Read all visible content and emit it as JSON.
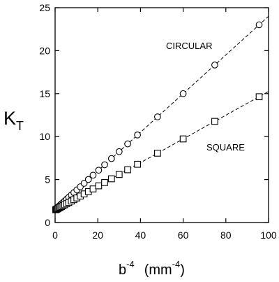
{
  "chart_data": {
    "type": "scatter",
    "title": "",
    "ylabel": "K",
    "ylabel_subscript": "T",
    "xlabel_base": "b",
    "xlabel_exponent": "-4",
    "xlabel_unit_open": "(mm",
    "xlabel_unit_exponent": "-4",
    "xlabel_unit_close": ")",
    "xlim": [
      0,
      100
    ],
    "ylim": [
      0,
      25
    ],
    "x_ticks": [
      0,
      20,
      40,
      60,
      80,
      100
    ],
    "y_ticks": [
      0,
      5,
      10,
      15,
      20,
      25
    ],
    "grid": false,
    "series": [
      {
        "name": "CIRCULAR",
        "marker": "circle",
        "fit": [
          1.5,
          0.225
        ],
        "x": [
          0.3,
          0.6,
          1.0,
          1.4,
          1.9,
          2.4,
          3.0,
          3.7,
          4.5,
          5.4,
          6.4,
          7.6,
          8.8,
          10.2,
          11.8,
          13.6,
          15.6,
          17.8,
          20.4,
          23.2,
          26.4,
          30.0,
          34.0,
          38.6,
          48.0,
          60.0,
          74.8,
          95.6
        ],
        "y": [
          1.57,
          1.64,
          1.73,
          1.82,
          1.93,
          2.04,
          2.18,
          2.33,
          2.51,
          2.72,
          2.94,
          3.21,
          3.48,
          3.8,
          4.16,
          4.56,
          5.01,
          5.51,
          6.09,
          6.72,
          7.44,
          8.25,
          9.15,
          10.19,
          12.3,
          15.0,
          18.33,
          23.01
        ]
      },
      {
        "name": "SQUARE",
        "marker": "square",
        "fit": [
          1.45,
          0.138
        ],
        "x": [
          0.3,
          0.6,
          1.0,
          1.4,
          1.9,
          2.4,
          3.0,
          3.7,
          4.5,
          5.4,
          6.4,
          7.6,
          8.8,
          10.2,
          11.8,
          13.6,
          15.6,
          17.8,
          20.4,
          23.2,
          26.4,
          30.0,
          34.0,
          38.6,
          48.0,
          60.0,
          74.8,
          95.6
        ],
        "y": [
          1.49,
          1.53,
          1.59,
          1.64,
          1.71,
          1.78,
          1.86,
          1.96,
          2.07,
          2.2,
          2.33,
          2.5,
          2.66,
          2.86,
          3.08,
          3.33,
          3.6,
          3.91,
          4.27,
          4.65,
          5.09,
          5.59,
          6.14,
          6.78,
          8.07,
          9.73,
          11.77,
          14.64
        ]
      }
    ]
  }
}
